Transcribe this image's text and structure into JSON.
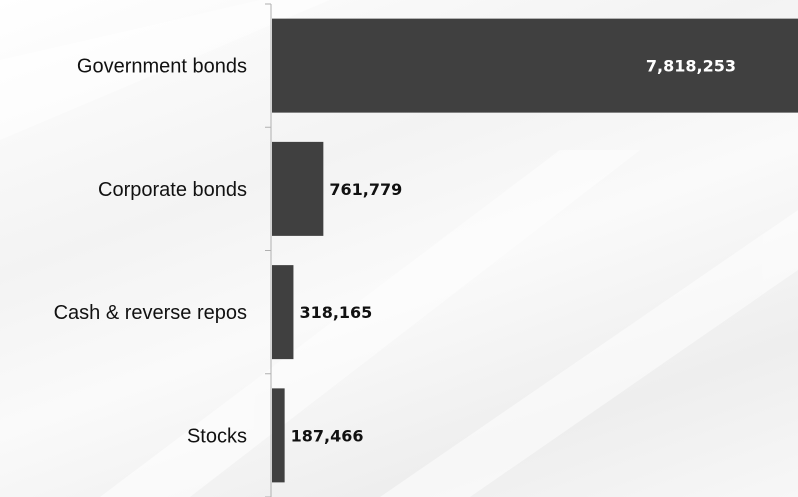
{
  "chart_data": {
    "type": "bar",
    "orientation": "horizontal",
    "title": "",
    "xlabel": "",
    "ylabel": "",
    "categories": [
      "Government bonds",
      "Corporate bonds",
      "Cash & reverse repos",
      "Stocks"
    ],
    "values": [
      7818253,
      761779,
      318165,
      187466
    ],
    "value_labels": [
      "7,818,253",
      "761,779",
      "318,165",
      "187,466"
    ],
    "xlim": [
      0,
      7818253
    ],
    "grid": false,
    "legend": "none",
    "colors": {
      "bar": "#404040",
      "axis": "#b0b0b0",
      "label_on_bar": "#ffffff",
      "label_outside": "#111111"
    }
  }
}
